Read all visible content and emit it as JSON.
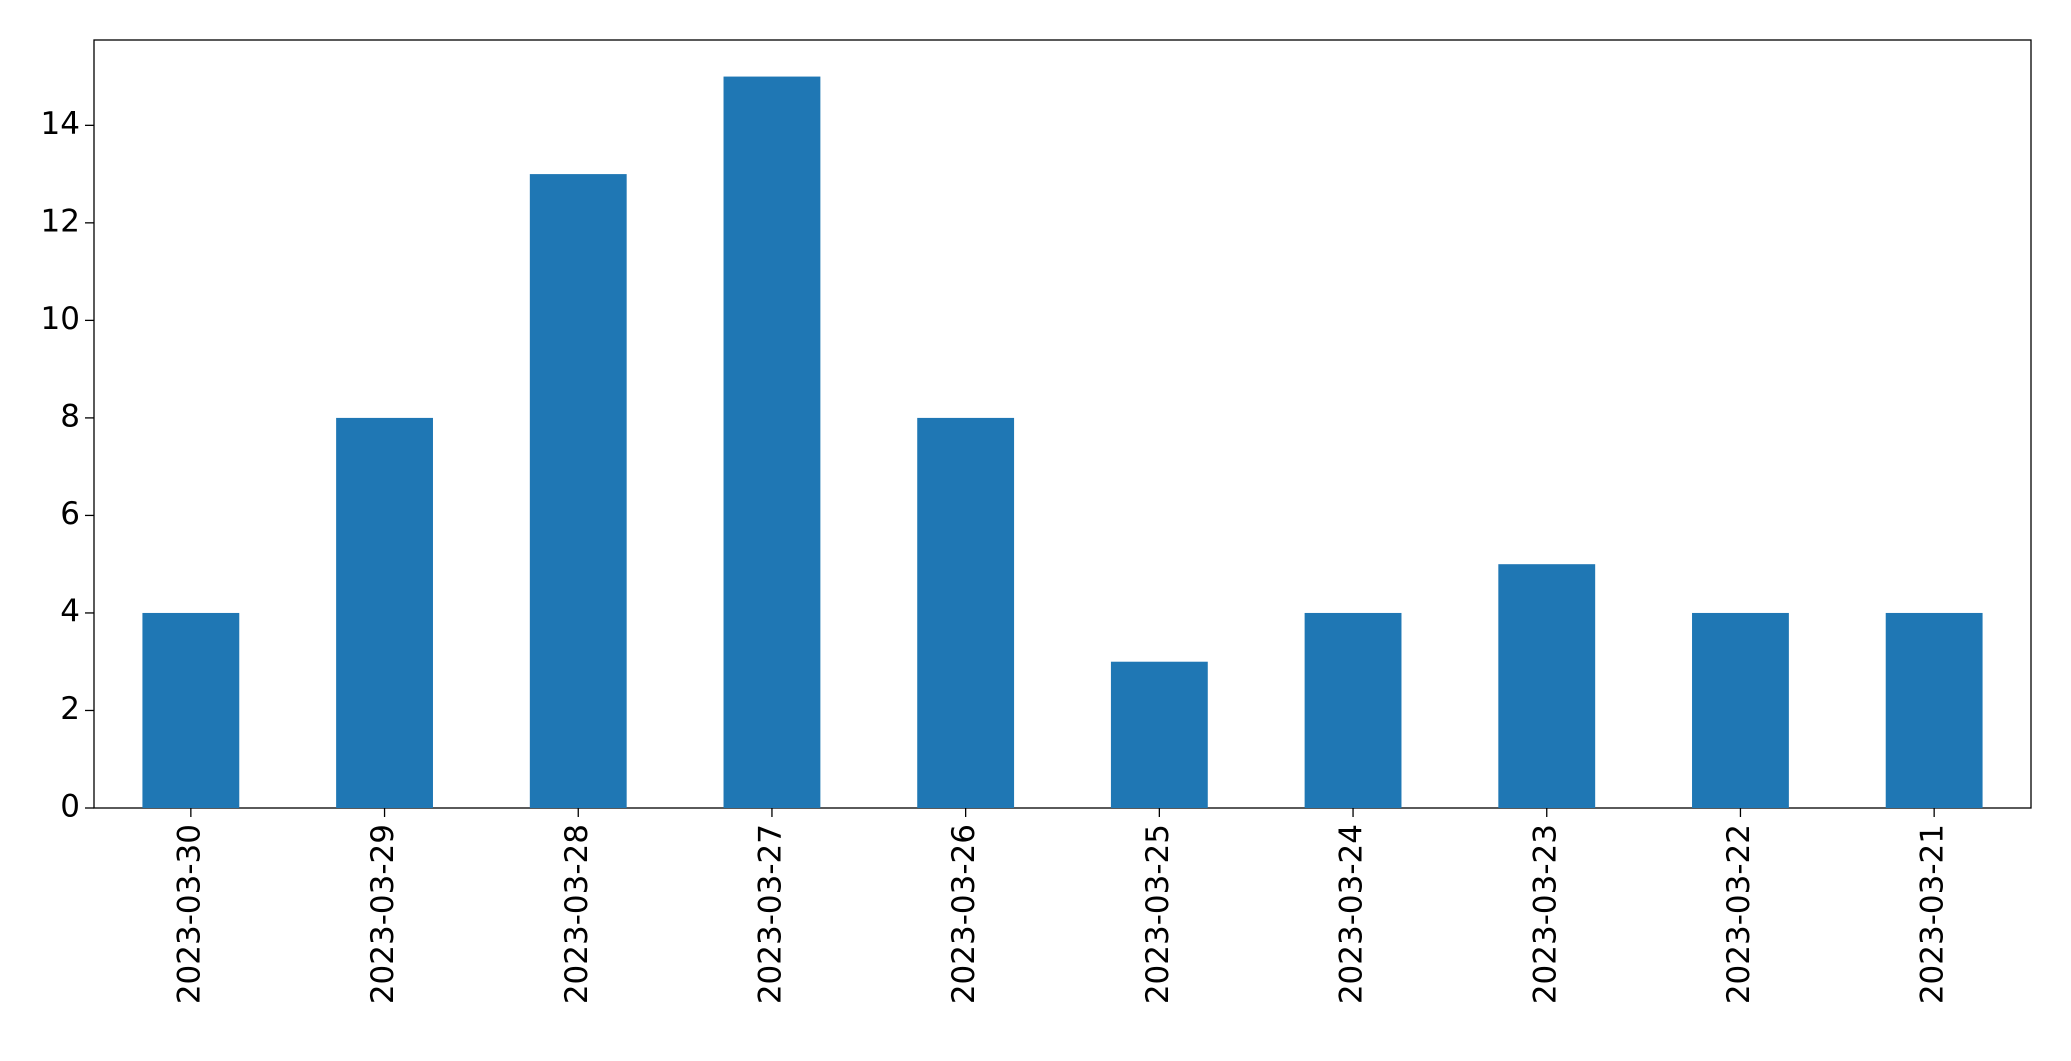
{
  "chart_data": {
    "type": "bar",
    "categories": [
      "2023-03-30",
      "2023-03-29",
      "2023-03-28",
      "2023-03-27",
      "2023-03-26",
      "2023-03-25",
      "2023-03-24",
      "2023-03-23",
      "2023-03-22",
      "2023-03-21"
    ],
    "values": [
      4,
      8,
      13,
      15,
      8,
      3,
      4,
      5,
      4,
      4
    ],
    "color": "#1f77b4",
    "ylim": [
      0,
      15.75
    ],
    "yticks": [
      0,
      2,
      4,
      6,
      8,
      10,
      12,
      14
    ],
    "grid": false
  }
}
